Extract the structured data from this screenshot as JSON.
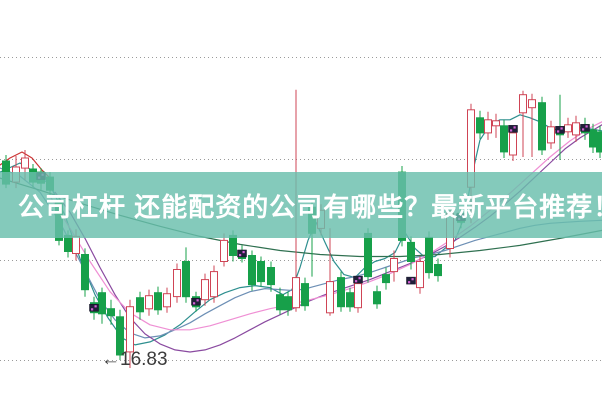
{
  "banner": {
    "title": "公司杠杆 还能配资的公司有哪些？最新平台推荐！",
    "bg_color": "#69beac",
    "text_color": "#ffffff"
  },
  "chart_data": {
    "type": "candlestick",
    "title": "",
    "xlabel": "",
    "ylabel": "",
    "grid": "dotted-horizontal",
    "price_axis": {
      "visible_labels": [
        "16.83"
      ],
      "gridline_prices": [
        19.84,
        18.83,
        17.83,
        16.83
      ]
    },
    "annotation": {
      "text": "←16.83",
      "price": 16.83
    },
    "colors": {
      "up": "#cf4455",
      "down": "#17a04a",
      "grid": "#9a9a9a",
      "marker": "#20203a",
      "marker_dot": "#d45fd4",
      "banner": "#69beac"
    },
    "candles": [
      [
        6,
        18.81,
        18.87,
        18.54,
        18.58
      ],
      [
        16,
        18.6,
        18.86,
        18.54,
        18.75
      ],
      [
        25,
        18.74,
        18.92,
        18.62,
        18.84
      ],
      [
        33,
        18.73,
        18.78,
        18.55,
        18.6
      ],
      [
        41,
        18.7,
        18.74,
        18.52,
        18.59
      ],
      [
        50,
        18.65,
        18.7,
        18.47,
        18.52
      ],
      [
        59,
        18.4,
        18.45,
        17.97,
        18.02
      ],
      [
        68,
        18.07,
        18.12,
        17.85,
        17.91
      ],
      [
        76,
        17.89,
        18.13,
        17.82,
        18.06
      ],
      [
        85,
        17.88,
        17.94,
        17.46,
        17.53
      ],
      [
        94,
        17.4,
        17.46,
        17.23,
        17.3
      ],
      [
        102,
        17.5,
        17.55,
        17.19,
        17.29
      ],
      [
        111,
        17.34,
        17.43,
        17.18,
        17.27
      ],
      [
        120,
        17.26,
        17.33,
        16.83,
        16.88
      ],
      [
        130,
        16.91,
        17.43,
        16.75,
        17.36
      ],
      [
        140,
        17.45,
        17.51,
        17.23,
        17.31
      ],
      [
        149,
        17.34,
        17.53,
        17.27,
        17.47
      ],
      [
        158,
        17.5,
        17.56,
        17.28,
        17.33
      ],
      [
        167,
        17.36,
        17.55,
        17.3,
        17.49
      ],
      [
        177,
        17.46,
        17.79,
        17.4,
        17.73
      ],
      [
        186,
        17.81,
        17.95,
        17.4,
        17.46
      ],
      [
        196,
        17.46,
        17.51,
        17.31,
        17.36
      ],
      [
        205,
        17.43,
        17.69,
        17.37,
        17.63
      ],
      [
        214,
        17.46,
        17.77,
        17.4,
        17.71
      ],
      [
        224,
        17.81,
        18.09,
        17.76,
        18.02
      ],
      [
        233,
        18.07,
        18.12,
        17.81,
        17.87
      ],
      [
        242,
        17.92,
        17.97,
        17.8,
        17.84
      ],
      [
        252,
        17.87,
        17.92,
        17.52,
        17.58
      ],
      [
        261,
        17.81,
        17.86,
        17.56,
        17.61
      ],
      [
        271,
        17.75,
        17.81,
        17.51,
        17.58
      ],
      [
        280,
        17.48,
        17.55,
        17.28,
        17.33
      ],
      [
        288,
        17.46,
        17.51,
        17.27,
        17.33
      ],
      [
        296,
        17.35,
        19.52,
        17.31,
        17.65
      ],
      [
        305,
        17.59,
        17.65,
        17.32,
        17.37
      ],
      [
        312,
        18.35,
        18.4,
        17.66,
        18.09
      ],
      [
        321,
        18.14,
        18.38,
        18.07,
        18.32
      ],
      [
        330,
        17.3,
        18.14,
        17.27,
        17.61
      ],
      [
        341,
        17.65,
        17.71,
        17.31,
        17.36
      ],
      [
        350,
        17.5,
        17.55,
        17.31,
        17.36
      ],
      [
        358,
        17.35,
        17.65,
        17.3,
        17.59
      ],
      [
        368,
        18.09,
        18.14,
        17.6,
        17.66
      ],
      [
        377,
        17.51,
        17.57,
        17.34,
        17.39
      ],
      [
        386,
        17.68,
        17.75,
        17.53,
        17.6
      ],
      [
        394,
        17.71,
        17.92,
        17.61,
        17.84
      ],
      [
        402,
        18.7,
        18.76,
        17.96,
        18.02
      ],
      [
        411,
        18.0,
        18.06,
        17.73,
        17.81
      ],
      [
        420,
        17.55,
        17.86,
        17.49,
        17.81
      ],
      [
        429,
        18.05,
        18.11,
        17.64,
        17.7
      ],
      [
        438,
        17.78,
        17.84,
        17.61,
        17.67
      ],
      [
        450,
        17.94,
        18.34,
        17.85,
        18.29
      ],
      [
        461,
        18.29,
        18.35,
        18.14,
        18.2
      ],
      [
        471,
        18.55,
        19.38,
        18.19,
        19.32
      ],
      [
        480,
        19.24,
        19.31,
        19.03,
        19.09
      ],
      [
        488,
        19.09,
        19.3,
        19.02,
        19.22
      ],
      [
        496,
        19.16,
        19.28,
        19.04,
        19.21
      ],
      [
        504,
        19.16,
        19.22,
        18.84,
        18.9
      ],
      [
        513,
        18.87,
        19.15,
        18.81,
        19.09
      ],
      [
        523,
        19.29,
        19.51,
        18.85,
        19.47
      ],
      [
        532,
        19.34,
        19.48,
        18.85,
        19.42
      ],
      [
        542,
        19.39,
        19.45,
        18.87,
        18.92
      ],
      [
        551,
        18.99,
        19.21,
        18.93,
        19.15
      ],
      [
        560,
        19.15,
        19.47,
        18.82,
        19.07
      ],
      [
        568,
        19.1,
        19.24,
        19.04,
        19.17
      ],
      [
        576,
        19.07,
        19.26,
        19.0,
        19.19
      ],
      [
        585,
        19.17,
        19.24,
        19.02,
        19.09
      ],
      [
        593,
        19.12,
        19.18,
        18.89,
        18.95
      ],
      [
        600,
        19.1,
        19.16,
        18.84,
        18.9
      ]
    ],
    "markers": [
      [
        41,
        18.66
      ],
      [
        94,
        17.35
      ],
      [
        196,
        17.41
      ],
      [
        242,
        17.89
      ],
      [
        358,
        17.63
      ],
      [
        411,
        17.62
      ],
      [
        461,
        18.25
      ],
      [
        513,
        19.13
      ],
      [
        560,
        19.12
      ],
      [
        585,
        19.14
      ]
    ],
    "ma_lines": [
      {
        "name": "ma-red",
        "color": "#cc3333",
        "points": [
          [
            0,
            18.77
          ],
          [
            10,
            18.84
          ],
          [
            22,
            18.9
          ],
          [
            32,
            18.84
          ],
          [
            42,
            18.72
          ],
          [
            50,
            18.64
          ]
        ]
      },
      {
        "name": "ma-teal-short",
        "color": "#2e8f8f",
        "points": [
          [
            0,
            18.7
          ],
          [
            20,
            18.79
          ],
          [
            35,
            18.7
          ],
          [
            50,
            18.57
          ],
          [
            65,
            18.27
          ],
          [
            80,
            17.84
          ],
          [
            95,
            17.48
          ],
          [
            108,
            17.25
          ],
          [
            122,
            17.05
          ],
          [
            135,
            16.98
          ],
          [
            150,
            17.01
          ],
          [
            165,
            17.08
          ],
          [
            180,
            17.18
          ],
          [
            195,
            17.31
          ],
          [
            210,
            17.43
          ],
          [
            225,
            17.5
          ],
          [
            240,
            17.55
          ],
          [
            255,
            17.57
          ],
          [
            270,
            17.55
          ],
          [
            283,
            17.48
          ],
          [
            292,
            17.53
          ],
          [
            300,
            17.75
          ],
          [
            308,
            18.02
          ],
          [
            316,
            18.2
          ],
          [
            325,
            18.0
          ],
          [
            334,
            17.81
          ],
          [
            344,
            17.68
          ],
          [
            355,
            17.65
          ],
          [
            365,
            17.75
          ],
          [
            375,
            17.81
          ],
          [
            385,
            17.84
          ],
          [
            395,
            17.9
          ],
          [
            405,
            18.1
          ],
          [
            415,
            17.94
          ],
          [
            425,
            17.85
          ],
          [
            435,
            17.86
          ],
          [
            445,
            17.94
          ],
          [
            455,
            18.02
          ],
          [
            465,
            18.27
          ],
          [
            472,
            18.67
          ],
          [
            480,
            19.02
          ],
          [
            490,
            19.17
          ],
          [
            500,
            19.22
          ],
          [
            510,
            19.22
          ],
          [
            520,
            19.27
          ],
          [
            530,
            19.24
          ],
          [
            540,
            19.2
          ],
          [
            550,
            19.14
          ],
          [
            560,
            19.11
          ],
          [
            570,
            19.13
          ],
          [
            580,
            19.14
          ],
          [
            590,
            19.13
          ],
          [
            602,
            19.11
          ]
        ]
      },
      {
        "name": "ma-blue",
        "color": "#6d8fb5",
        "points": [
          [
            0,
            18.74
          ],
          [
            20,
            18.66
          ],
          [
            40,
            18.5
          ],
          [
            60,
            18.2
          ],
          [
            80,
            17.81
          ],
          [
            100,
            17.43
          ],
          [
            115,
            17.23
          ],
          [
            130,
            17.1
          ],
          [
            145,
            17.05
          ],
          [
            160,
            17.07
          ],
          [
            175,
            17.13
          ],
          [
            190,
            17.2
          ],
          [
            205,
            17.29
          ],
          [
            220,
            17.37
          ],
          [
            235,
            17.45
          ],
          [
            250,
            17.51
          ],
          [
            265,
            17.54
          ],
          [
            280,
            17.53
          ],
          [
            295,
            17.52
          ],
          [
            310,
            17.55
          ],
          [
            325,
            17.59
          ],
          [
            340,
            17.63
          ],
          [
            355,
            17.66
          ],
          [
            370,
            17.7
          ],
          [
            385,
            17.75
          ],
          [
            400,
            17.8
          ],
          [
            415,
            17.85
          ],
          [
            430,
            17.88
          ],
          [
            445,
            17.92
          ],
          [
            460,
            17.97
          ],
          [
            475,
            18.02
          ],
          [
            490,
            18.06
          ],
          [
            505,
            18.1
          ],
          [
            520,
            18.14
          ],
          [
            535,
            18.17
          ],
          [
            550,
            18.19
          ],
          [
            565,
            18.2
          ],
          [
            580,
            18.21
          ],
          [
            602,
            18.22
          ]
        ]
      },
      {
        "name": "ma-purple",
        "color": "#8a4aa0",
        "points": [
          [
            55,
            18.5
          ],
          [
            70,
            18.3
          ],
          [
            85,
            18.04
          ],
          [
            100,
            17.75
          ],
          [
            115,
            17.48
          ],
          [
            130,
            17.25
          ],
          [
            145,
            17.09
          ],
          [
            160,
            16.99
          ],
          [
            175,
            16.93
          ],
          [
            190,
            16.91
          ],
          [
            205,
            16.93
          ],
          [
            220,
            16.98
          ],
          [
            235,
            17.05
          ],
          [
            250,
            17.13
          ],
          [
            265,
            17.21
          ],
          [
            280,
            17.28
          ],
          [
            295,
            17.35
          ],
          [
            310,
            17.42
          ],
          [
            325,
            17.48
          ],
          [
            340,
            17.53
          ],
          [
            355,
            17.58
          ],
          [
            370,
            17.63
          ],
          [
            385,
            17.69
          ],
          [
            400,
            17.75
          ],
          [
            415,
            17.81
          ],
          [
            430,
            17.88
          ],
          [
            445,
            17.96
          ],
          [
            460,
            18.05
          ],
          [
            475,
            18.15
          ],
          [
            490,
            18.26
          ],
          [
            505,
            18.38
          ],
          [
            520,
            18.51
          ],
          [
            535,
            18.65
          ],
          [
            550,
            18.79
          ],
          [
            565,
            18.93
          ],
          [
            580,
            19.04
          ],
          [
            602,
            19.17
          ]
        ]
      },
      {
        "name": "ma-pink",
        "color": "#ef8fd4",
        "points": [
          [
            50,
            18.46
          ],
          [
            70,
            18.14
          ],
          [
            90,
            17.81
          ],
          [
            110,
            17.51
          ],
          [
            130,
            17.3
          ],
          [
            150,
            17.18
          ],
          [
            170,
            17.13
          ],
          [
            190,
            17.13
          ],
          [
            210,
            17.17
          ],
          [
            230,
            17.23
          ],
          [
            250,
            17.29
          ],
          [
            270,
            17.34
          ],
          [
            290,
            17.38
          ],
          [
            310,
            17.43
          ],
          [
            330,
            17.48
          ],
          [
            350,
            17.54
          ],
          [
            370,
            17.61
          ],
          [
            390,
            17.69
          ],
          [
            410,
            17.78
          ],
          [
            430,
            17.89
          ],
          [
            450,
            18.02
          ],
          [
            470,
            18.16
          ],
          [
            490,
            18.32
          ],
          [
            510,
            18.49
          ],
          [
            530,
            18.67
          ],
          [
            550,
            18.85
          ],
          [
            570,
            19.01
          ],
          [
            590,
            19.14
          ],
          [
            602,
            19.2
          ]
        ]
      },
      {
        "name": "ma-darkgreen",
        "color": "#2f7050",
        "points": [
          [
            0,
            18.64
          ],
          [
            40,
            18.52
          ],
          [
            80,
            18.39
          ],
          [
            120,
            18.27
          ],
          [
            160,
            18.16
          ],
          [
            200,
            18.06
          ],
          [
            240,
            17.98
          ],
          [
            280,
            17.92
          ],
          [
            320,
            17.88
          ],
          [
            360,
            17.86
          ],
          [
            400,
            17.86
          ],
          [
            440,
            17.88
          ],
          [
            480,
            17.92
          ],
          [
            520,
            17.97
          ],
          [
            560,
            18.04
          ],
          [
            602,
            18.12
          ]
        ]
      }
    ]
  }
}
